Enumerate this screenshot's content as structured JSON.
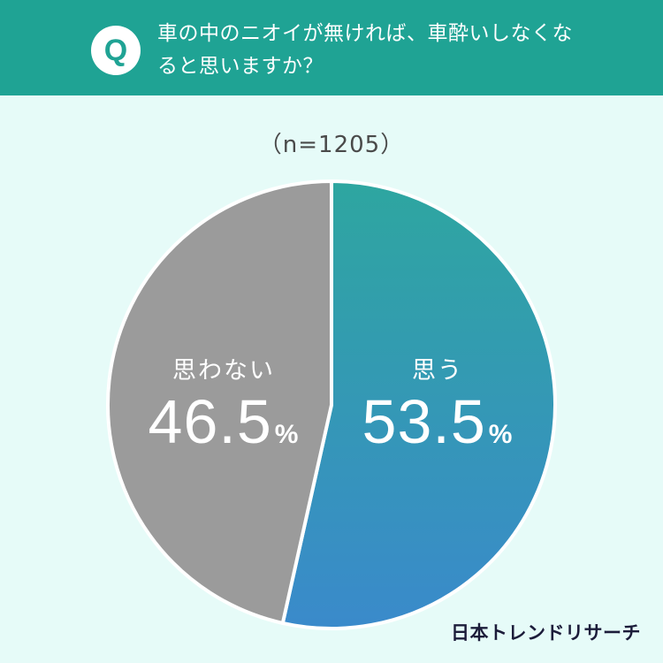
{
  "header": {
    "badge": "Q",
    "question": "車の中のニオイが無ければ、車酔いしなくなると思いますか？"
  },
  "sample_label": "（n=1205）",
  "brand": "日本トレンドリサーチ",
  "colors": {
    "background": "#e6fbf8",
    "header": "#1fa394",
    "yes_gradient_start": "#2ea6a0",
    "yes_gradient_end": "#3a8acb",
    "no": "#9b9b9b"
  },
  "chart_data": {
    "type": "pie",
    "title": "車の中のニオイが無ければ、車酔いしなくなると思いますか？",
    "n": 1205,
    "slices": [
      {
        "label": "思う",
        "value": 53.5,
        "display": "53.5",
        "unit": "%"
      },
      {
        "label": "思わない",
        "value": 46.5,
        "display": "46.5",
        "unit": "%"
      }
    ]
  }
}
